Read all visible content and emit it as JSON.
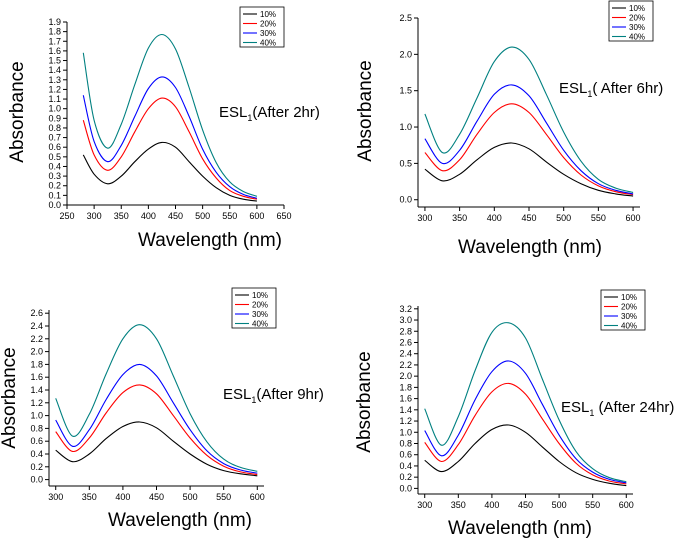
{
  "chart_data": [
    {
      "type": "line",
      "annotation": {
        "main": "ESL",
        "sub": "1",
        "rest": "(After  2hr)"
      },
      "xlabel": "Wavelength (nm)",
      "ylabel": "Absorbance",
      "xlim": [
        250,
        650
      ],
      "ylim": [
        0.0,
        1.9
      ],
      "xticks": [
        250,
        300,
        350,
        400,
        450,
        500,
        550,
        600,
        650
      ],
      "yticks": [
        "0.0",
        "0.1",
        "0.2",
        "0.3",
        "0.4",
        "0.5",
        "0.6",
        "0.7",
        "0.8",
        "0.9",
        "1.0",
        "1.1",
        "1.2",
        "1.3",
        "1.4",
        "1.5",
        "1.6",
        "1.7",
        "1.8",
        "1.9"
      ],
      "legend": [
        "10%",
        "20%",
        "30%",
        "40%"
      ],
      "colors": [
        "#000000",
        "#ff0000",
        "#0000ff",
        "#008080"
      ],
      "x": [
        280,
        300,
        325,
        350,
        375,
        400,
        425,
        450,
        475,
        500,
        525,
        550,
        575,
        600
      ],
      "series": [
        {
          "name": "10%",
          "values": [
            0.52,
            0.32,
            0.22,
            0.3,
            0.45,
            0.58,
            0.65,
            0.6,
            0.45,
            0.3,
            0.18,
            0.1,
            0.06,
            0.04
          ]
        },
        {
          "name": "20%",
          "values": [
            0.88,
            0.52,
            0.36,
            0.5,
            0.76,
            1.0,
            1.11,
            1.02,
            0.76,
            0.48,
            0.28,
            0.15,
            0.09,
            0.06
          ]
        },
        {
          "name": "30%",
          "values": [
            1.14,
            0.66,
            0.45,
            0.62,
            0.92,
            1.21,
            1.33,
            1.22,
            0.92,
            0.58,
            0.34,
            0.19,
            0.11,
            0.07
          ]
        },
        {
          "name": "40%",
          "values": [
            1.58,
            0.88,
            0.59,
            0.84,
            1.25,
            1.63,
            1.77,
            1.62,
            1.22,
            0.78,
            0.44,
            0.24,
            0.14,
            0.09
          ]
        }
      ]
    },
    {
      "type": "line",
      "annotation": {
        "main": "ESL",
        "sub": "1",
        "rest": "( After  6hr)"
      },
      "xlabel": "Wavelength (nm)",
      "ylabel": "Absorbance",
      "xlim": [
        290,
        610
      ],
      "ylim": [
        -0.1,
        2.5
      ],
      "xticks": [
        300,
        350,
        400,
        450,
        500,
        550,
        600
      ],
      "yticks": [
        "0.0",
        "0.5",
        "1.0",
        "1.5",
        "2.0",
        "2.5"
      ],
      "legend": [
        "10%",
        "20%",
        "30%",
        "40%"
      ],
      "colors": [
        "#000000",
        "#ff0000",
        "#0000ff",
        "#008080"
      ],
      "x": [
        300,
        325,
        350,
        375,
        400,
        425,
        450,
        475,
        500,
        525,
        550,
        575,
        600
      ],
      "series": [
        {
          "name": "10%",
          "values": [
            0.42,
            0.26,
            0.35,
            0.55,
            0.72,
            0.78,
            0.7,
            0.52,
            0.35,
            0.22,
            0.13,
            0.08,
            0.05
          ]
        },
        {
          "name": "20%",
          "values": [
            0.65,
            0.4,
            0.55,
            0.9,
            1.2,
            1.32,
            1.2,
            0.9,
            0.58,
            0.34,
            0.19,
            0.11,
            0.07
          ]
        },
        {
          "name": "30%",
          "values": [
            0.84,
            0.5,
            0.68,
            1.08,
            1.45,
            1.58,
            1.43,
            1.06,
            0.68,
            0.4,
            0.22,
            0.13,
            0.08
          ]
        },
        {
          "name": "40%",
          "values": [
            1.18,
            0.65,
            0.9,
            1.4,
            1.9,
            2.1,
            1.93,
            1.45,
            0.93,
            0.53,
            0.28,
            0.16,
            0.1
          ]
        }
      ]
    },
    {
      "type": "line",
      "annotation": {
        "main": "ESL",
        "sub": "1",
        "rest": "(After 9hr)"
      },
      "xlabel": "Wavelength (nm)",
      "ylabel": "Absorbance",
      "xlim": [
        290,
        610
      ],
      "ylim": [
        -0.1,
        2.65
      ],
      "xticks": [
        300,
        350,
        400,
        450,
        500,
        550,
        600
      ],
      "yticks": [
        "0.0",
        "0.2",
        "0.4",
        "0.6",
        "0.8",
        "1.0",
        "1.2",
        "1.4",
        "1.6",
        "1.8",
        "2.0",
        "2.2",
        "2.4",
        "2.6"
      ],
      "legend": [
        "10%",
        "20%",
        "30%",
        "40%"
      ],
      "colors": [
        "#000000",
        "#ff0000",
        "#0000ff",
        "#008080"
      ],
      "x": [
        300,
        325,
        350,
        375,
        400,
        425,
        450,
        475,
        500,
        525,
        550,
        575,
        600
      ],
      "series": [
        {
          "name": "10%",
          "values": [
            0.46,
            0.28,
            0.4,
            0.64,
            0.83,
            0.9,
            0.81,
            0.6,
            0.4,
            0.24,
            0.14,
            0.09,
            0.06
          ]
        },
        {
          "name": "20%",
          "values": [
            0.75,
            0.44,
            0.65,
            1.04,
            1.36,
            1.48,
            1.34,
            1.0,
            0.65,
            0.38,
            0.21,
            0.12,
            0.08
          ]
        },
        {
          "name": "30%",
          "values": [
            0.93,
            0.52,
            0.78,
            1.25,
            1.64,
            1.8,
            1.62,
            1.2,
            0.78,
            0.45,
            0.25,
            0.15,
            0.1
          ]
        },
        {
          "name": "40%",
          "values": [
            1.27,
            0.68,
            1.02,
            1.65,
            2.2,
            2.42,
            2.2,
            1.62,
            1.03,
            0.59,
            0.32,
            0.19,
            0.13
          ]
        }
      ]
    },
    {
      "type": "line",
      "annotation": {
        "main": "ESL",
        "sub": "1",
        "rest": " (After 24hr)"
      },
      "xlabel": "Wavelength (nm)",
      "ylabel": "Absorbance",
      "xlim": [
        290,
        610
      ],
      "ylim": [
        -0.1,
        3.25
      ],
      "xticks": [
        300,
        350,
        400,
        450,
        500,
        550,
        600
      ],
      "yticks": [
        "0.0",
        "0.2",
        "0.4",
        "0.6",
        "0.8",
        "1.0",
        "1.2",
        "1.4",
        "1.6",
        "1.8",
        "2.0",
        "2.2",
        "2.4",
        "2.6",
        "2.8",
        "3.0",
        "3.2"
      ],
      "legend": [
        "10%",
        "20%",
        "30%",
        "40%"
      ],
      "colors": [
        "#000000",
        "#ff0000",
        "#0000ff",
        "#008080"
      ],
      "x": [
        300,
        325,
        350,
        375,
        400,
        425,
        450,
        475,
        500,
        525,
        550,
        575,
        600
      ],
      "series": [
        {
          "name": "10%",
          "values": [
            0.5,
            0.3,
            0.48,
            0.8,
            1.05,
            1.13,
            1.0,
            0.74,
            0.48,
            0.28,
            0.16,
            0.09,
            0.05
          ]
        },
        {
          "name": "20%",
          "values": [
            0.82,
            0.48,
            0.78,
            1.3,
            1.72,
            1.87,
            1.68,
            1.24,
            0.8,
            0.45,
            0.24,
            0.13,
            0.08
          ]
        },
        {
          "name": "30%",
          "values": [
            1.03,
            0.58,
            0.95,
            1.58,
            2.08,
            2.27,
            2.05,
            1.5,
            0.95,
            0.53,
            0.29,
            0.16,
            0.1
          ]
        },
        {
          "name": "40%",
          "values": [
            1.42,
            0.77,
            1.28,
            2.1,
            2.78,
            2.95,
            2.68,
            1.95,
            1.22,
            0.66,
            0.35,
            0.19,
            0.12
          ]
        }
      ]
    }
  ]
}
